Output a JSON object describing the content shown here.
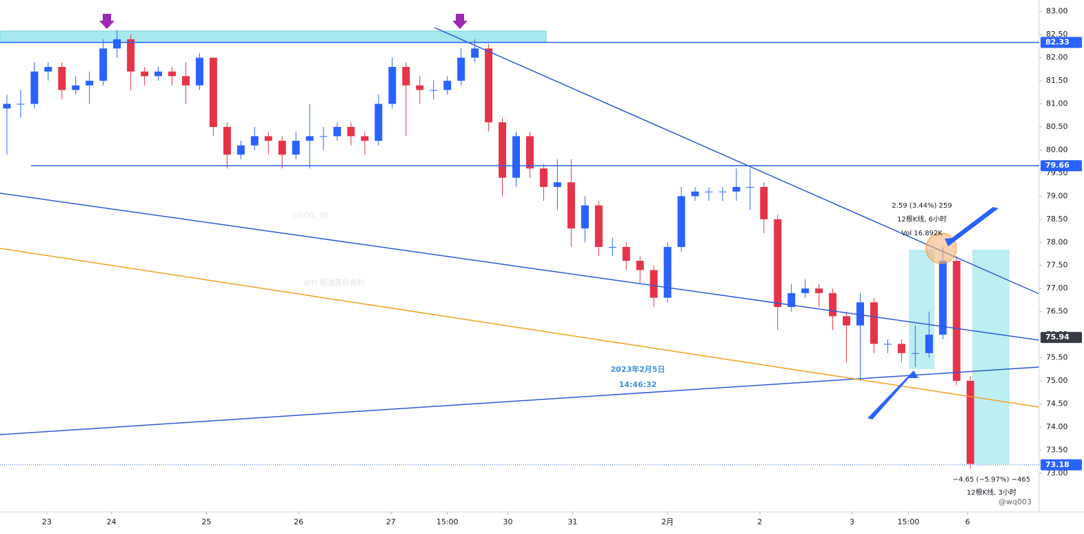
{
  "chart_data": {
    "type": "candlestick",
    "watermark": "USOIL, 30",
    "watermark_subtitle": "WTI 原油差价合约",
    "up_color": "#2962ff",
    "down_color": "#e5344a",
    "open": [
      80.9,
      81.0,
      81.0,
      81.7,
      81.8,
      81.3,
      81.4,
      81.5,
      82.2,
      82.4,
      81.7,
      81.6,
      81.7,
      81.6,
      81.4,
      82.0,
      80.5,
      79.9,
      80.1,
      80.3,
      80.2,
      79.9,
      80.2,
      80.3,
      80.3,
      80.5,
      80.3,
      80.2,
      81.0,
      81.8,
      81.4,
      81.3,
      81.3,
      81.5,
      82.0,
      82.2,
      80.6,
      79.4,
      80.3,
      79.6,
      79.2,
      79.3,
      78.3,
      78.8,
      77.9,
      77.9,
      77.6,
      77.4,
      76.8,
      77.9,
      79.0,
      79.1,
      79.1,
      79.1,
      79.2,
      79.2,
      78.5,
      76.6,
      76.9,
      77.0,
      76.9,
      76.4,
      76.2,
      76.7,
      75.8,
      75.8,
      75.6,
      75.6,
      76.0,
      77.6,
      75.0
    ],
    "high": [
      81.2,
      81.3,
      81.9,
      81.9,
      81.9,
      81.6,
      81.7,
      82.4,
      82.6,
      82.5,
      81.8,
      81.8,
      81.8,
      81.9,
      82.1,
      82.0,
      80.6,
      80.2,
      80.5,
      80.4,
      80.3,
      80.4,
      81.0,
      80.5,
      80.6,
      80.6,
      80.4,
      81.2,
      82.0,
      81.9,
      81.6,
      81.5,
      81.6,
      82.2,
      82.4,
      82.3,
      80.7,
      80.4,
      80.4,
      79.7,
      79.8,
      79.8,
      79.0,
      78.9,
      78.1,
      78.0,
      77.7,
      77.5,
      78.0,
      79.2,
      79.2,
      79.2,
      79.2,
      79.6,
      79.6,
      79.3,
      78.6,
      77.1,
      77.2,
      77.1,
      77.0,
      76.5,
      76.9,
      76.8,
      75.9,
      75.9,
      76.2,
      76.5,
      77.9,
      77.7,
      75.1
    ],
    "low": [
      79.9,
      80.7,
      80.9,
      81.5,
      81.1,
      81.2,
      81.0,
      81.4,
      82.0,
      81.3,
      81.4,
      81.5,
      81.4,
      81.0,
      81.3,
      80.3,
      79.6,
      79.8,
      80.0,
      79.9,
      79.6,
      79.8,
      79.6,
      80.0,
      80.2,
      80.1,
      79.9,
      80.1,
      80.9,
      80.3,
      81.0,
      81.1,
      81.2,
      81.4,
      81.9,
      80.4,
      79.0,
      79.2,
      79.4,
      78.9,
      78.7,
      77.9,
      78.0,
      77.7,
      77.7,
      77.4,
      77.1,
      76.6,
      76.7,
      77.8,
      78.9,
      78.9,
      78.9,
      78.9,
      78.7,
      78.2,
      76.1,
      76.5,
      76.8,
      76.6,
      76.1,
      75.4,
      75.0,
      75.6,
      75.6,
      75.4,
      75.3,
      75.5,
      75.9,
      74.9,
      73.1
    ],
    "close": [
      81.0,
      81.0,
      81.7,
      81.8,
      81.3,
      81.4,
      81.5,
      82.2,
      82.4,
      81.7,
      81.6,
      81.7,
      81.6,
      81.4,
      82.0,
      80.5,
      79.9,
      80.1,
      80.3,
      80.2,
      79.9,
      80.2,
      80.3,
      80.3,
      80.5,
      80.3,
      80.2,
      81.0,
      81.8,
      81.4,
      81.3,
      81.3,
      81.5,
      82.0,
      82.2,
      80.6,
      79.4,
      80.3,
      79.6,
      79.2,
      79.3,
      78.3,
      78.8,
      77.9,
      77.9,
      77.6,
      77.4,
      76.8,
      77.9,
      79.0,
      79.1,
      79.1,
      79.1,
      79.2,
      79.2,
      78.5,
      76.6,
      76.9,
      77.0,
      76.9,
      76.4,
      76.2,
      76.7,
      75.8,
      75.8,
      75.6,
      75.6,
      76.0,
      77.6,
      75.0,
      73.2
    ],
    "xlim": [
      -0.5,
      75
    ],
    "xticks": [
      {
        "value": 2.9,
        "label": "23"
      },
      {
        "value": 7.6,
        "label": "24"
      },
      {
        "value": 14.5,
        "label": "25"
      },
      {
        "value": 21.2,
        "label": "26"
      },
      {
        "value": 27.9,
        "label": "27"
      },
      {
        "value": 32,
        "label": "15:00"
      },
      {
        "value": 36.4,
        "label": "30"
      },
      {
        "value": 41.1,
        "label": "31"
      },
      {
        "value": 48,
        "label": "2月"
      },
      {
        "value": 54.7,
        "label": "2"
      },
      {
        "value": 61.4,
        "label": "3"
      },
      {
        "value": 65.5,
        "label": "15:00"
      },
      {
        "value": 69.8,
        "label": "6"
      }
    ],
    "ylim": [
      72.16,
      83.25
    ],
    "yticks": [
      {
        "value": 73,
        "label": "73.00"
      },
      {
        "value": 73.5,
        "label": "73.50"
      },
      {
        "value": 74,
        "label": "74.00"
      },
      {
        "value": 74.5,
        "label": "74.50"
      },
      {
        "value": 75,
        "label": "75.00"
      },
      {
        "value": 75.5,
        "label": "75.50"
      },
      {
        "value": 76,
        "label": "76.00"
      },
      {
        "value": 76.5,
        "label": "76.50"
      },
      {
        "value": 77,
        "label": "77.00"
      },
      {
        "value": 77.5,
        "label": "77.50"
      },
      {
        "value": 78,
        "label": "78.00"
      },
      {
        "value": 78.5,
        "label": "78.50"
      },
      {
        "value": 79,
        "label": "79.00"
      },
      {
        "value": 79.5,
        "label": "79.50"
      },
      {
        "value": 80,
        "label": "80.00"
      },
      {
        "value": 80.5,
        "label": "80.50"
      },
      {
        "value": 81,
        "label": "81.00"
      },
      {
        "value": 81.5,
        "label": "81.50"
      },
      {
        "value": 82,
        "label": "82.00"
      },
      {
        "value": 82.5,
        "label": "82.50"
      },
      {
        "value": 83,
        "label": "83.00"
      }
    ],
    "price_lines": [
      {
        "value": 82.33,
        "color": "#2962ff",
        "line": "solid"
      },
      {
        "value": 79.66,
        "color": "#2962ff",
        "line": "solid"
      },
      {
        "value": 75.94,
        "color": "#363a45",
        "line": "none"
      },
      {
        "value": 73.18,
        "color": "#2962ff",
        "line": "dotted"
      }
    ],
    "annotations": {
      "measure_up": [
        "2.59 (3.44%) 259",
        "12根K线, 6小时",
        "Vol 16.892K"
      ],
      "date": "2023年2月5日",
      "time": "14:46:32",
      "measure_down": [
        "−4.65 (−5.97%) −465",
        "12根K线, 3小时"
      ],
      "credit": "@wq003"
    }
  }
}
